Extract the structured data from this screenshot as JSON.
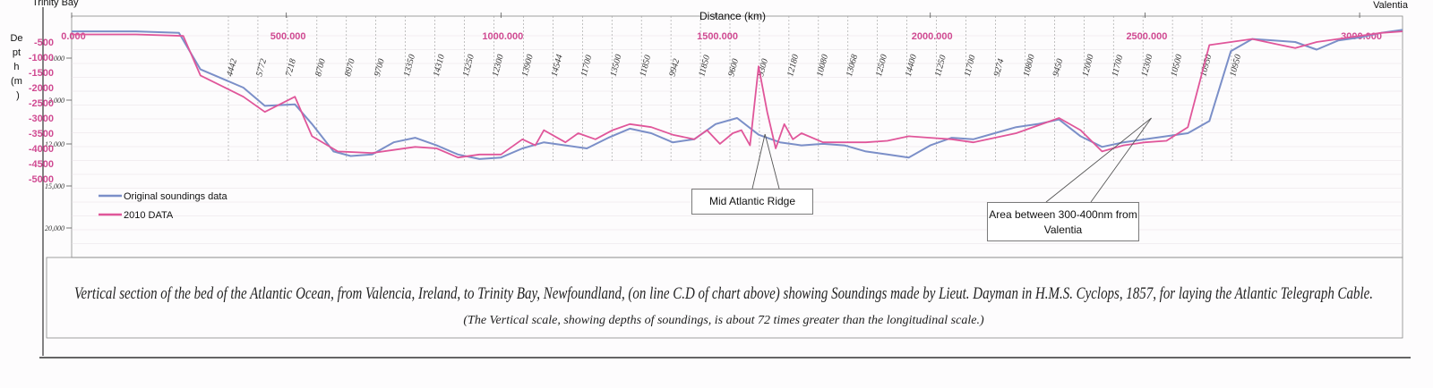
{
  "chart_data": {
    "type": "line",
    "title": "Distance (km)",
    "ylabel": "Depth (m)",
    "ylabel_parts": [
      "De",
      "pt",
      "h",
      "(m",
      ")"
    ],
    "xlim": [
      0,
      3100
    ],
    "ylim": [
      0,
      5000
    ],
    "x_ticks": [
      "0.000",
      "500.000",
      "1000.000",
      "1500.000",
      "2000.000",
      "2500.000",
      "3000.000"
    ],
    "x_tick_values": [
      0,
      500,
      1000,
      1500,
      2000,
      2500,
      3000
    ],
    "y_ticks": [
      "-500",
      "-1000",
      "-1500",
      "-2000",
      "-2500",
      "-3000",
      "-3500",
      "-4000",
      "-4500",
      "-5000"
    ],
    "y_tick_values": [
      500,
      1000,
      1500,
      2000,
      2500,
      3000,
      3500,
      4000,
      4500,
      5000
    ],
    "endpoints": {
      "left": "Trinity Bay",
      "right": "Valentia"
    },
    "legend_position": "bottom-left",
    "series": [
      {
        "name": "Original soundings data",
        "color": "#7b8fc8",
        "x": [
          0,
          150,
          250,
          300,
          400,
          450,
          520,
          560,
          610,
          650,
          700,
          750,
          800,
          850,
          900,
          950,
          1000,
          1050,
          1100,
          1150,
          1200,
          1250,
          1300,
          1350,
          1400,
          1450,
          1500,
          1550,
          1600,
          1650,
          1700,
          1750,
          1800,
          1850,
          1900,
          1950,
          2000,
          2050,
          2100,
          2150,
          2200,
          2250,
          2300,
          2350,
          2400,
          2450,
          2500,
          2550,
          2600,
          2650,
          2700,
          2750,
          2800,
          2850,
          2900,
          2950,
          3000,
          3050,
          3100
        ],
        "y": [
          150,
          150,
          200,
          1400,
          2000,
          2600,
          2550,
          3200,
          4100,
          4250,
          4200,
          3800,
          3650,
          3900,
          4200,
          4350,
          4300,
          4000,
          3800,
          3900,
          4000,
          3650,
          3350,
          3500,
          3800,
          3700,
          3200,
          3000,
          3550,
          3800,
          3900,
          3850,
          3900,
          4100,
          4200,
          4300,
          3900,
          3650,
          3700,
          3500,
          3300,
          3200,
          3050,
          3600,
          3950,
          3800,
          3700,
          3600,
          3500,
          3100,
          800,
          400,
          450,
          500,
          750,
          450,
          350,
          200,
          100
        ]
      },
      {
        "name": "2010 DATA",
        "color": "#e0569a",
        "x": [
          0,
          150,
          260,
          300,
          400,
          450,
          520,
          560,
          620,
          700,
          750,
          800,
          850,
          900,
          950,
          1000,
          1050,
          1080,
          1100,
          1150,
          1180,
          1220,
          1260,
          1300,
          1350,
          1400,
          1450,
          1480,
          1510,
          1540,
          1560,
          1580,
          1600,
          1620,
          1640,
          1660,
          1680,
          1700,
          1750,
          1800,
          1850,
          1900,
          1950,
          2000,
          2050,
          2100,
          2150,
          2200,
          2250,
          2300,
          2350,
          2400,
          2450,
          2500,
          2550,
          2600,
          2650,
          2700,
          2750,
          2800,
          2850,
          2900,
          2950,
          3000,
          3050,
          3100
        ],
        "y": [
          250,
          250,
          300,
          1600,
          2300,
          2800,
          2300,
          3600,
          4100,
          4150,
          4050,
          3950,
          4000,
          4300,
          4200,
          4200,
          3700,
          3900,
          3400,
          3800,
          3500,
          3700,
          3400,
          3200,
          3300,
          3550,
          3700,
          3400,
          3850,
          3500,
          3400,
          3900,
          1300,
          2800,
          4000,
          3200,
          3700,
          3500,
          3800,
          3800,
          3800,
          3750,
          3600,
          3650,
          3700,
          3800,
          3650,
          3500,
          3250,
          3000,
          3400,
          4100,
          3900,
          3800,
          3750,
          3300,
          600,
          500,
          400,
          550,
          700,
          500,
          400,
          300,
          200,
          150
        ]
      }
    ],
    "cable_ticks": [
      "4442",
      "5772",
      "7218",
      "8700",
      "8970",
      "9700",
      "13350",
      "14310",
      "13250",
      "12300",
      "13900",
      "14544",
      "11700",
      "13500",
      "11850",
      "9942",
      "11850",
      "9600",
      "9300",
      "12180",
      "10080",
      "13068",
      "12500",
      "14400",
      "11250",
      "11700",
      "9274",
      "10800",
      "9450",
      "12000",
      "11700",
      "12300",
      "10500",
      "10950",
      "10950"
    ],
    "annotations": [
      {
        "label": "Mid Atlantic Ridge",
        "x": 1615
      },
      {
        "label": "Area between  300-400nm from Valentia",
        "x": 2515
      }
    ],
    "legacy_scale": [
      "1000",
      "3,000",
      "12,000",
      "15,000",
      "20,000"
    ],
    "caption": "Vertical section of the bed of the Atlantic Ocean, from Valencia, Ireland, to Trinity Bay, Newfoundland, (on line C.D of chart above) showing Soundings made by Lieut. Dayman in H.M.S. Cyclops, 1857, for laying the Atlantic Telegraph Cable.",
    "subcaption": "(The Vertical scale, showing depths of soundings, is about 72 times greater than the longitudinal scale.)"
  }
}
